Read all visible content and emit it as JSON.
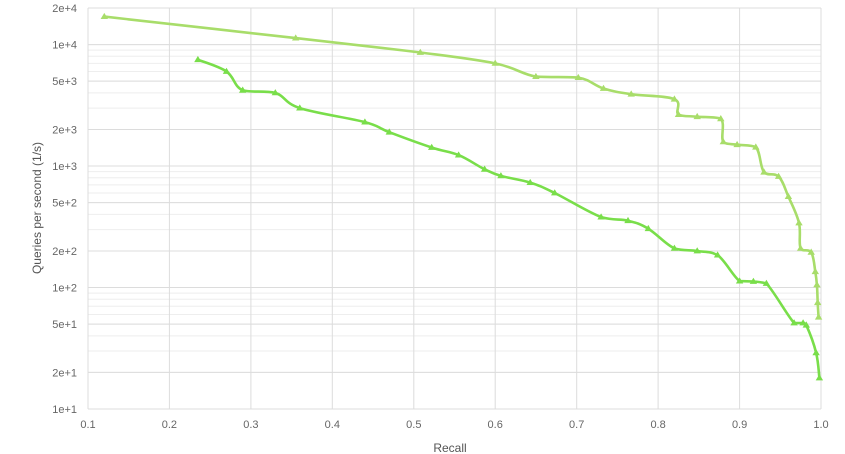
{
  "chart_data": {
    "type": "line",
    "title": "",
    "xlabel": "Recall",
    "ylabel": "Queries per second (1/s)",
    "x_scale": "linear",
    "y_scale": "log",
    "xlim": [
      0.1,
      1.0
    ],
    "ylim": [
      10,
      20000
    ],
    "grid": true,
    "legend": "none",
    "x_ticks": [
      "0.1",
      "0.2",
      "0.3",
      "0.4",
      "0.5",
      "0.6",
      "0.7",
      "0.8",
      "0.9",
      "1.0"
    ],
    "y_ticks": [
      {
        "value": 20000,
        "label": "2e+4"
      },
      {
        "value": 10000,
        "label": "1e+4"
      },
      {
        "value": 5000,
        "label": "5e+3"
      },
      {
        "value": 2000,
        "label": "2e+3"
      },
      {
        "value": 1000,
        "label": "1e+3"
      },
      {
        "value": 500,
        "label": "5e+2"
      },
      {
        "value": 200,
        "label": "2e+2"
      },
      {
        "value": 100,
        "label": "1e+2"
      },
      {
        "value": 50,
        "label": "5e+1"
      },
      {
        "value": 20,
        "label": "2e+1"
      },
      {
        "value": 10,
        "label": "1e+1"
      }
    ],
    "series": [
      {
        "color": "#a8dd6a",
        "x": [
          0.12,
          0.355,
          0.508,
          0.6,
          0.65,
          0.702,
          0.733,
          0.767,
          0.82,
          0.825,
          0.848,
          0.877,
          0.88,
          0.897,
          0.92,
          0.93,
          0.948,
          0.96,
          0.973,
          0.975,
          0.988,
          0.993,
          0.995,
          0.996,
          0.997
        ],
        "y": [
          17000,
          11300,
          8600,
          7000,
          5450,
          5350,
          4350,
          3900,
          3550,
          2650,
          2550,
          2450,
          1580,
          1500,
          1430,
          890,
          820,
          560,
          340,
          210,
          195,
          135,
          105,
          75,
          57
        ]
      },
      {
        "color": "#79de4a",
        "x": [
          0.235,
          0.27,
          0.29,
          0.33,
          0.36,
          0.44,
          0.47,
          0.522,
          0.555,
          0.587,
          0.607,
          0.643,
          0.673,
          0.73,
          0.763,
          0.788,
          0.82,
          0.848,
          0.873,
          0.9,
          0.917,
          0.933,
          0.967,
          0.978,
          0.982,
          0.994,
          0.998
        ],
        "y": [
          7500,
          6000,
          4200,
          4000,
          3000,
          2300,
          1900,
          1420,
          1230,
          940,
          830,
          730,
          600,
          380,
          355,
          305,
          210,
          200,
          185,
          113,
          112,
          108,
          51,
          51,
          49,
          29,
          18
        ]
      }
    ]
  }
}
